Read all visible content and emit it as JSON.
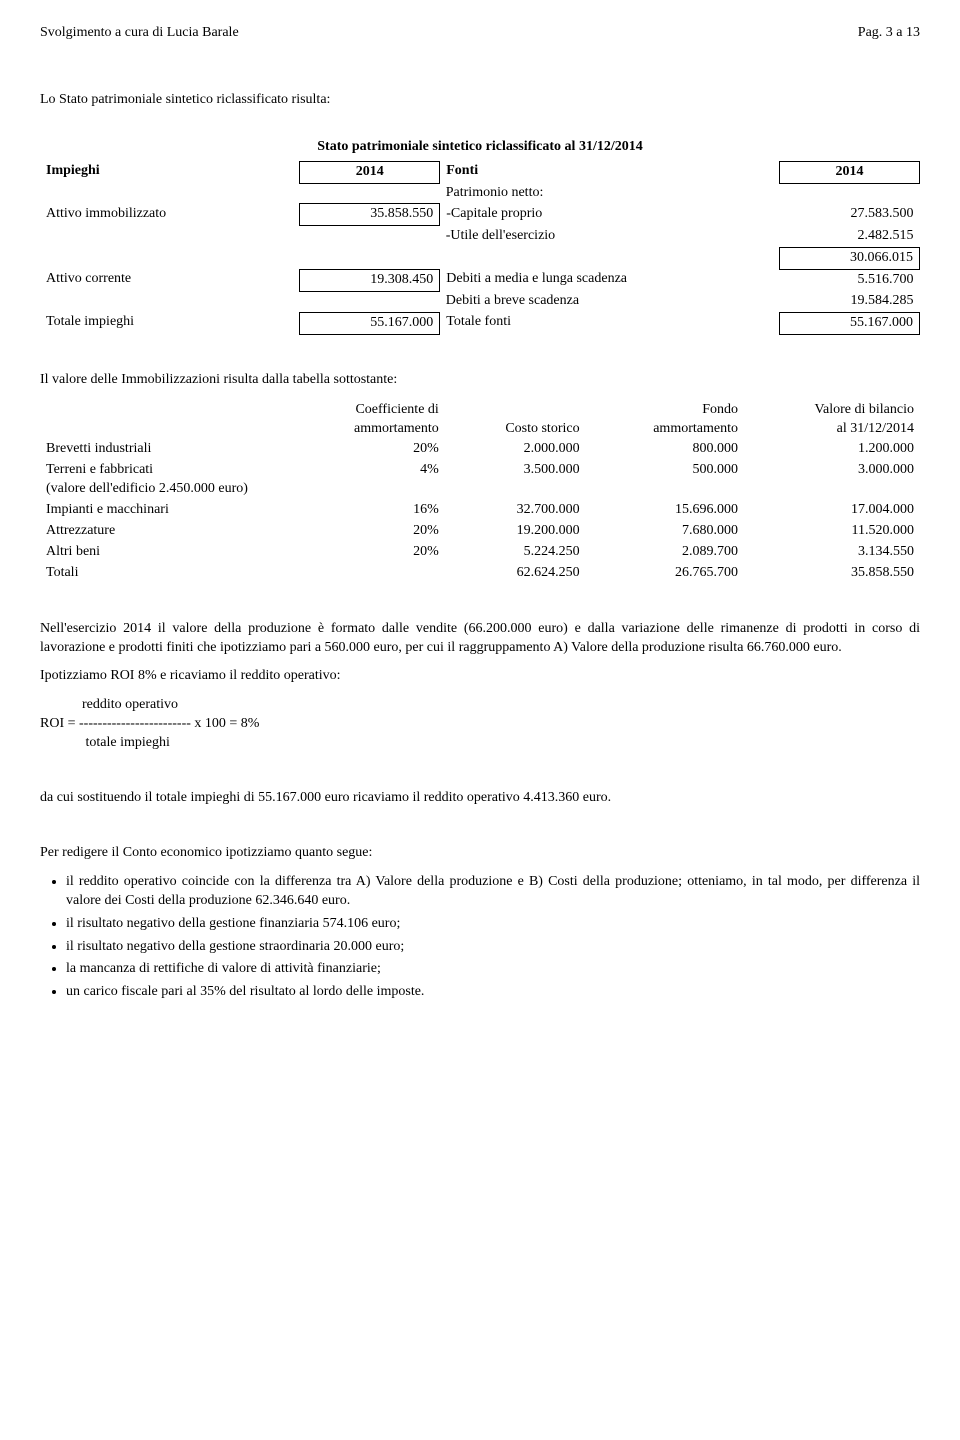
{
  "header": {
    "left": "Svolgimento a cura di Lucia Barale",
    "right": "Pag. 3 a 13"
  },
  "intro": "Lo Stato patrimoniale sintetico riclassificato risulta:",
  "patrimoniale": {
    "title": "Stato patrimoniale sintetico riclassificato al 31/12/2014",
    "left_header": "Impieghi",
    "left_year": "2014",
    "right_header": "Fonti",
    "right_year": "2014",
    "rows_left": {
      "attivo_immobilizzato": {
        "label": "Attivo immobilizzato",
        "value": "35.858.550"
      },
      "attivo_corrente": {
        "label": "Attivo corrente",
        "value": "19.308.450"
      },
      "totale_impieghi": {
        "label": "Totale impieghi",
        "value": "55.167.000"
      }
    },
    "rows_right": {
      "patrimonio_netto": {
        "label": "Patrimonio netto:"
      },
      "capitale_proprio": {
        "label": "-Capitale proprio",
        "value": "27.583.500"
      },
      "utile": {
        "label": "-Utile dell'esercizio",
        "value": "2.482.515"
      },
      "sub1": {
        "value": "30.066.015"
      },
      "debiti_lunga": {
        "label": "Debiti a media e lunga scadenza",
        "value": "5.516.700"
      },
      "debiti_breve": {
        "label": "Debiti a breve scadenza",
        "value": "19.584.285"
      },
      "totale_fonti": {
        "label": "Totale fonti",
        "value": "55.167.000"
      }
    }
  },
  "immob_intro": "Il valore delle Immobilizzazioni risulta dalla tabella sottostante:",
  "immob": {
    "headers": {
      "coef": "Coefficiente di\nammortamento",
      "costo": "Costo storico",
      "fondo": "Fondo\nammortamento",
      "valore": "Valore di bilancio\nal 31/12/2014"
    },
    "rows": [
      {
        "label": "Brevetti industriali",
        "coef": "20%",
        "costo": "2.000.000",
        "fondo": "800.000",
        "valore": "1.200.000"
      },
      {
        "label": "Terreni e fabbricati\n(valore dell'edificio 2.450.000 euro)",
        "coef": "4%",
        "costo": "3.500.000",
        "fondo": "500.000",
        "valore": "3.000.000"
      },
      {
        "label": "Impianti e macchinari",
        "coef": "16%",
        "costo": "32.700.000",
        "fondo": "15.696.000",
        "valore": "17.004.000"
      },
      {
        "label": "Attrezzature",
        "coef": "20%",
        "costo": "19.200.000",
        "fondo": "7.680.000",
        "valore": "11.520.000"
      },
      {
        "label": "Altri beni",
        "coef": "20%",
        "costo": "5.224.250",
        "fondo": "2.089.700",
        "valore": "3.134.550"
      },
      {
        "label": "Totali",
        "coef": "",
        "costo": "62.624.250",
        "fondo": "26.765.700",
        "valore": "35.858.550"
      }
    ]
  },
  "para1": "Nell'esercizio 2014 il valore della produzione è formato dalle vendite (66.200.000 euro) e dalla variazione delle rimanenze di prodotti in corso di lavorazione e prodotti finiti che ipotizziamo pari a 560.000 euro, per cui il raggruppamento A) Valore della produzione risulta 66.760.000 euro.",
  "para2": "Ipotizziamo ROI 8% e ricaviamo il reddito operativo:",
  "formula": {
    "l1": "            reddito operativo",
    "l2": "ROI = ------------------------ x 100 = 8%",
    "l3": "             totale impieghi"
  },
  "para3": "da cui sostituendo il totale impieghi di 55.167.000 euro ricaviamo il reddito operativo 4.413.360 euro.",
  "para4": "Per redigere il Conto economico ipotizziamo quanto segue:",
  "bullets": [
    "il reddito operativo coincide con la differenza tra A) Valore della produzione e B) Costi della produzione;  otteniamo, in tal modo, per differenza il valore dei Costi della produzione 62.346.640 euro.",
    "il risultato negativo della gestione finanziaria 574.106 euro;",
    "il risultato negativo della gestione straordinaria 20.000 euro;",
    "la mancanza di rettifiche di valore di attività finanziarie;",
    "un carico fiscale pari al 35% del risultato al lordo delle imposte."
  ]
}
